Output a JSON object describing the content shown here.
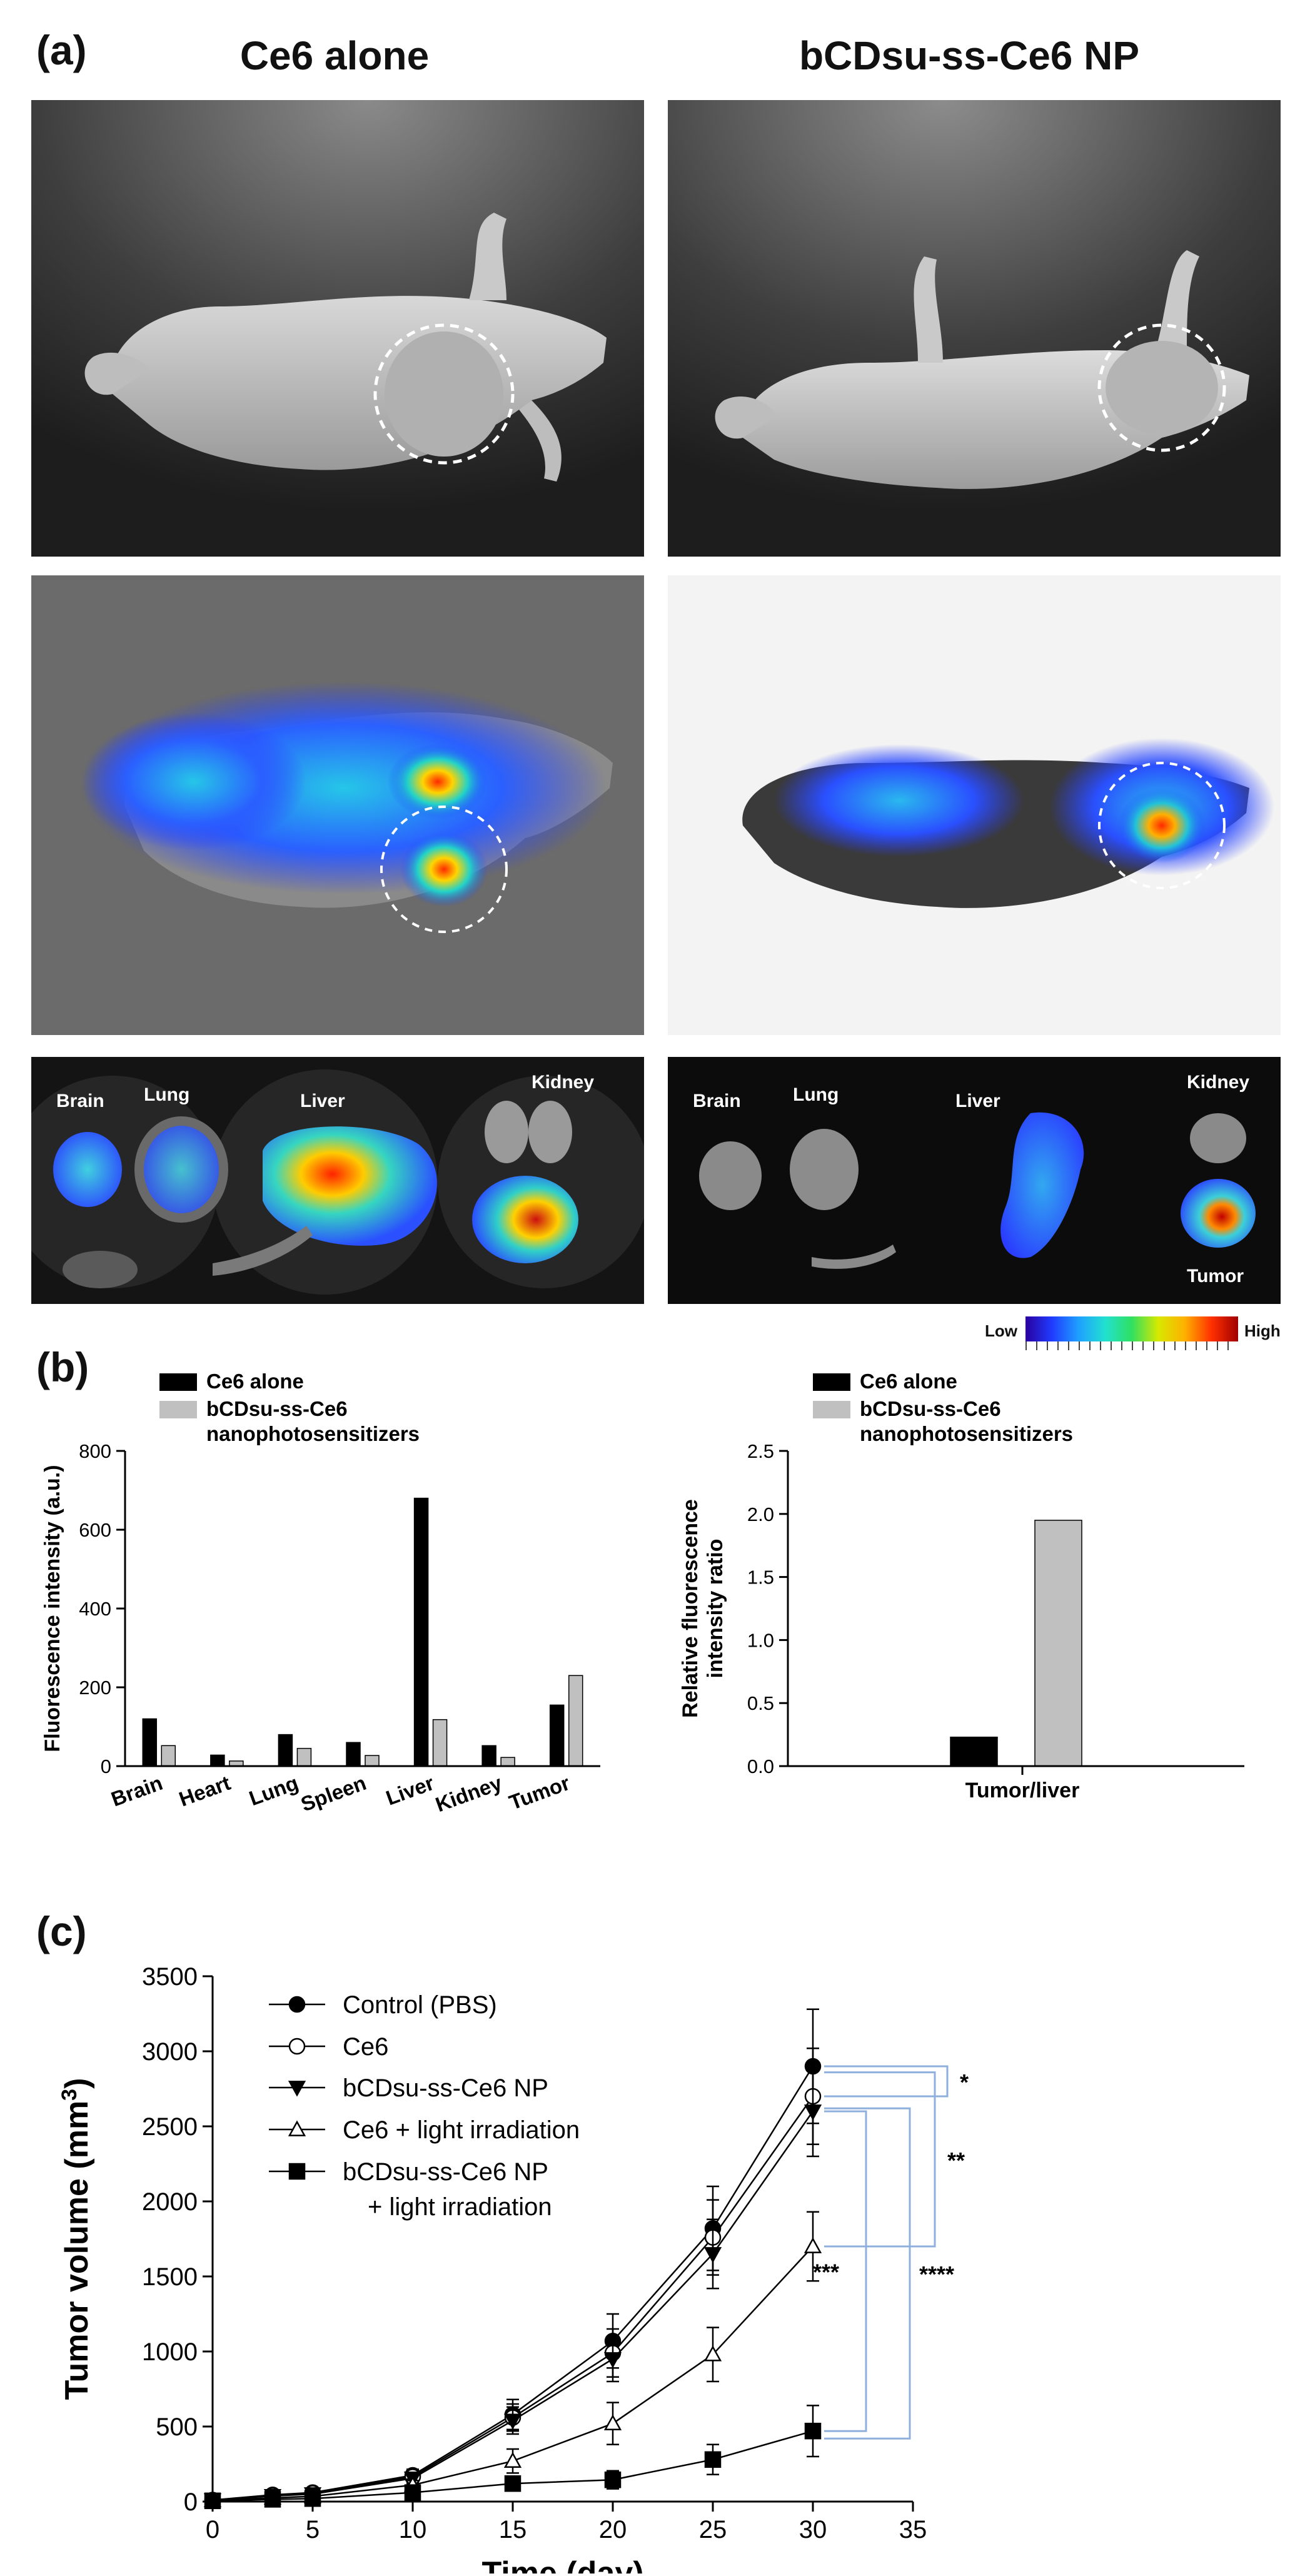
{
  "panel_a": {
    "letter": "(a)",
    "col_left_title": "Ce6 alone",
    "col_right_title": "bCDsu-ss-Ce6 NP",
    "organs_left": [
      "Brain",
      "Lung",
      "Liver",
      "Kidney"
    ],
    "organs_right": [
      "Brain",
      "Lung",
      "Liver",
      "Kidney",
      "Tumor"
    ],
    "colorbar": {
      "low": "Low",
      "high": "High"
    }
  },
  "panel_b": {
    "letter": "(b)"
  },
  "panel_c": {
    "letter": "(c)"
  },
  "chart_data": [
    {
      "type": "bar",
      "categories": [
        "Brain",
        "Heart",
        "Lung",
        "Spleen",
        "Liver",
        "Kidney",
        "Tumor"
      ],
      "series": [
        {
          "name": "Ce6 alone",
          "values": [
            120,
            28,
            80,
            60,
            680,
            52,
            155
          ],
          "color": "#000000"
        },
        {
          "name": "bCDsu-ss-Ce6 nanophotosensitizers",
          "values": [
            52,
            13,
            45,
            27,
            118,
            22,
            230
          ],
          "color": "#c0c0c0"
        }
      ],
      "ylabel": "Fluorescence intensity (a.u.)",
      "ylim": [
        0,
        800
      ],
      "yticks": [
        0,
        200,
        400,
        600,
        800
      ],
      "legend": "top-left"
    },
    {
      "type": "bar",
      "categories": [
        "Tumor/liver"
      ],
      "series": [
        {
          "name": "Ce6 alone",
          "values": [
            0.23
          ],
          "color": "#000000"
        },
        {
          "name": "bCDsu-ss-Ce6 nanophotosensitizers",
          "values": [
            1.95
          ],
          "color": "#c0c0c0"
        }
      ],
      "ylabel": "Relative fluorescence intensity ratio",
      "ylim": [
        0,
        2.5
      ],
      "yticks": [
        0.0,
        0.5,
        1.0,
        1.5,
        2.0,
        2.5
      ],
      "legend": "top-left"
    },
    {
      "type": "line",
      "x": [
        0,
        3,
        5,
        10,
        15,
        20,
        25,
        30
      ],
      "series": [
        {
          "name": "Control (PBS)",
          "marker": "filled-circle",
          "values": [
            10,
            45,
            60,
            175,
            580,
            1070,
            1820,
            2900
          ],
          "errors": [
            10,
            15,
            20,
            40,
            100,
            180,
            280,
            380
          ]
        },
        {
          "name": "Ce6",
          "marker": "open-circle",
          "values": [
            10,
            40,
            55,
            165,
            560,
            990,
            1760,
            2700
          ],
          "errors": [
            10,
            15,
            20,
            40,
            90,
            160,
            250,
            320
          ]
        },
        {
          "name": "bCDsu-ss-Ce6 NP",
          "marker": "filled-triangle-down",
          "values": [
            10,
            38,
            50,
            155,
            540,
            950,
            1650,
            2600
          ],
          "errors": [
            10,
            15,
            20,
            40,
            90,
            150,
            230,
            300
          ]
        },
        {
          "name": "Ce6 + light irradiation",
          "marker": "open-triangle-up",
          "values": [
            8,
            25,
            35,
            110,
            270,
            520,
            980,
            1700
          ],
          "errors": [
            8,
            10,
            15,
            30,
            80,
            140,
            180,
            230
          ]
        },
        {
          "name": "bCDsu-ss-Ce6 NP\n+ light irradiation",
          "marker": "filled-square",
          "values": [
            5,
            15,
            20,
            60,
            120,
            145,
            280,
            470
          ],
          "errors": [
            5,
            8,
            10,
            20,
            40,
            60,
            100,
            170
          ]
        }
      ],
      "xlabel": "Time (day)",
      "ylabel": "Tumor volume (mm3)",
      "xlim": [
        0,
        35
      ],
      "xticks": [
        0,
        5,
        10,
        15,
        20,
        25,
        30,
        35
      ],
      "ylim": [
        0,
        3500
      ],
      "yticks": [
        0,
        500,
        1000,
        1500,
        2000,
        2500,
        3000,
        3500
      ],
      "annotations": [
        "*",
        "**",
        "***",
        "****"
      ],
      "legend": "top-left"
    }
  ]
}
